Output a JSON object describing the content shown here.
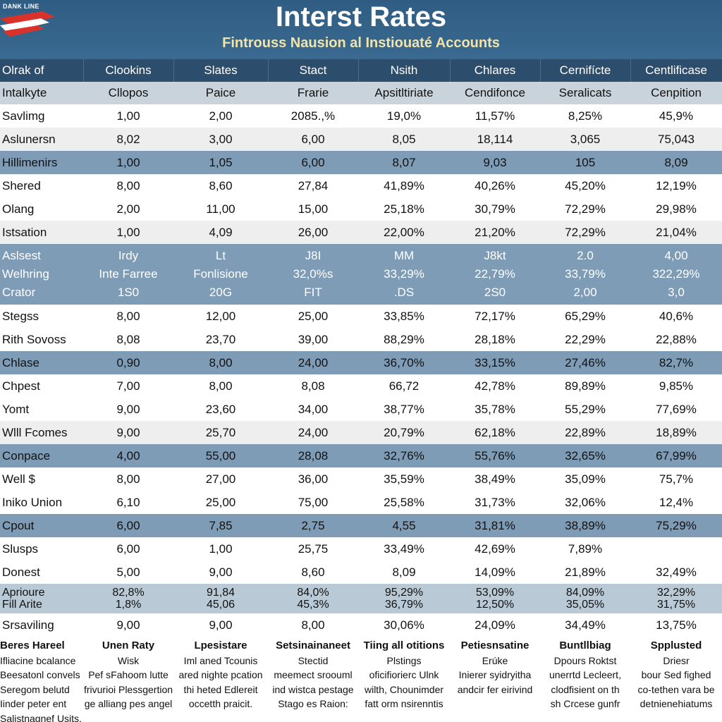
{
  "header": {
    "logo_text": "DANK LINE",
    "title": "Interst Rates",
    "subtitle": "Fintrouss Nausion al Instiouaté Accounts"
  },
  "table": {
    "columns": [
      "Olrak of",
      "Clookins",
      "Slates",
      "Stact",
      "Nsith",
      "Chlares",
      "Cernifícte",
      "Centlificase"
    ],
    "subheader": [
      "Intalkyte",
      "Cllopos",
      "Paice",
      "Frarie",
      "Apsitltiriate",
      "Cendifonce",
      "Seralicats",
      "Cenpition"
    ],
    "rows_a": [
      {
        "style": "w",
        "cells": [
          "Savlimg",
          "1,00",
          "2,00",
          "2085.,%",
          "19,0%",
          "11,57%",
          "8,25%",
          "45,9%"
        ]
      },
      {
        "style": "g",
        "cells": [
          "Aslunersn",
          "8,02",
          "3,00",
          "6,00",
          "8,05",
          "18,114",
          "3,065",
          "75,043"
        ]
      },
      {
        "style": "b",
        "cells": [
          "Hillimenirs",
          "1,00",
          "1,05",
          "6,00",
          "8,07",
          "9,03",
          "105",
          "8,09"
        ]
      },
      {
        "style": "w",
        "cells": [
          "Shered",
          "8,00",
          "8,60",
          "27,84",
          "41,89%",
          "40,26%",
          "45,20%",
          "12,19%"
        ]
      },
      {
        "style": "w",
        "cells": [
          "Olang",
          "2,00",
          "11,00",
          "15,00",
          "25,18%",
          "30,79%",
          "72,29%",
          "29,98%"
        ]
      },
      {
        "style": "g",
        "cells": [
          "Istsation",
          "1,00",
          "4,09",
          "26,00",
          "22,00%",
          "21,20%",
          "72,29%",
          "21,04%"
        ]
      }
    ],
    "block": [
      [
        "Aslsest",
        "Irdy",
        "Lt",
        "J8I",
        "MM",
        "J8kt",
        "2.0",
        "4,00"
      ],
      [
        "Welhring",
        "Inte Farree",
        "Fonlisione",
        "32,0%s",
        "33,29%",
        "22,79%",
        "33,79%",
        "322,29%"
      ],
      [
        "Crator",
        "1S0",
        "20G",
        "FIT",
        ".DS",
        "2S0",
        "2,00",
        "3,0"
      ]
    ],
    "rows_b": [
      {
        "style": "w",
        "cells": [
          "Stegss",
          "8,00",
          "12,00",
          "25,00",
          "33,85%",
          "72,17%",
          "65,29%",
          "40,6%"
        ]
      },
      {
        "style": "w",
        "cells": [
          "Rith Sovoss",
          "8,08",
          "23,70",
          "39,00",
          "88,29%",
          "28,18%",
          "22,29%",
          "22,88%"
        ]
      },
      {
        "style": "b",
        "cells": [
          "Chlase",
          "0,90",
          "8,00",
          "24,00",
          "36,70%",
          "33,15%",
          "27,46%",
          "82,7%"
        ]
      },
      {
        "style": "w",
        "cells": [
          "Chpest",
          "7,00",
          "8,00",
          "8,08",
          "66,72",
          "42,78%",
          "89,89%",
          "9,85%"
        ]
      },
      {
        "style": "w",
        "cells": [
          "Yomt",
          "9,00",
          "23,60",
          "34,00",
          "38,77%",
          "35,78%",
          "55,29%",
          "77,69%"
        ]
      },
      {
        "style": "g",
        "cells": [
          "Wlll Fcomes",
          "9,00",
          "25,70",
          "24,00",
          "20,79%",
          "62,18%",
          "22,89%",
          "18,89%"
        ]
      },
      {
        "style": "b",
        "cells": [
          "Conpace",
          "4,00",
          "55,00",
          "28,08",
          "32,76%",
          "55,76%",
          "32,65%",
          "67,99%"
        ]
      },
      {
        "style": "w",
        "cells": [
          "Well $",
          "8,00",
          "27,00",
          "36,00",
          "35,59%",
          "38,49%",
          "35,09%",
          "75,7%"
        ]
      },
      {
        "style": "w",
        "cells": [
          "Iniko Union",
          "6,10",
          "25,00",
          "75,00",
          "25,58%",
          "31,73%",
          "32,06%",
          "12,4%"
        ]
      },
      {
        "style": "b",
        "cells": [
          "Cpout",
          "6,00",
          "7,85",
          "2,75",
          "4,55",
          "31,81%",
          "38,89%",
          "75,29%"
        ]
      },
      {
        "style": "w",
        "cells": [
          "Slusps",
          "6,00",
          "1,00",
          "25,75",
          "33,49%",
          "42,69%",
          "7,89%",
          ""
        ]
      },
      {
        "style": "w",
        "cells": [
          "Donest",
          "5,00",
          "9,00",
          "8,60",
          "8,09",
          "14,09%",
          "21,89%",
          "32,49%"
        ]
      }
    ],
    "block2": [
      [
        "Aprioure",
        "82,8%",
        "91,84",
        "84,0%",
        "95,29%",
        "53,09%",
        "84,09%",
        "32,29%"
      ],
      [
        "Fill Arite",
        "1,8%",
        "45,06",
        "45,3%",
        "36,79%",
        "12,50%",
        "35,05%",
        "31,75%"
      ]
    ],
    "rows_c": [
      {
        "style": "w",
        "cells": [
          "Srsaviling",
          "9,00",
          "9,00",
          "8,00",
          "30,06%",
          "24,09%",
          "34,49%",
          "13,75%"
        ]
      }
    ]
  },
  "footer": [
    {
      "head": "Beres Hareel",
      "lines": [
        "Ifliacine bcalance",
        "Beesatonl convels",
        "Seregom belutd",
        "Iinder peter ent",
        "Salistnagnef Usits, the veldeer."
      ]
    },
    {
      "head": "Unen Raty",
      "lines": [
        "Wisk",
        "Pef sFahoom lutte",
        "frivurioi Plessgertion",
        "ge alliang pes angel"
      ]
    },
    {
      "head": "Lpesistare",
      "lines": [
        "Iml aned Tcounis",
        "ared nighte pcation",
        "thi heted Edlereit",
        "occetth praicit."
      ]
    },
    {
      "head": "Setsinainaneet",
      "lines": [
        "Stectid",
        "meemect sroouml",
        "ind wistca pestage",
        "Stago es Raion:"
      ]
    },
    {
      "head": "Tiing all otitions",
      "lines": [
        "Plstings",
        "oficifiorierc Ulnk",
        "wilth, Chounimder",
        "fatt orm nsirenntis"
      ]
    },
    {
      "head": "Petiesnsatine",
      "lines": [
        "Erúke",
        "Inierer syidryitha",
        "andcir fer eirivind",
        ""
      ]
    },
    {
      "head": "Buntllbiag",
      "lines": [
        "Dpours Roktst",
        "unerrtd Lecleert,",
        "clodfisient on th",
        "sh Crcese gunfr"
      ]
    },
    {
      "head": "Spplusted",
      "lines": [
        "Driesr",
        "bour Sed fighed",
        "co-tethen vara be",
        "detnienehiatums"
      ]
    }
  ]
}
